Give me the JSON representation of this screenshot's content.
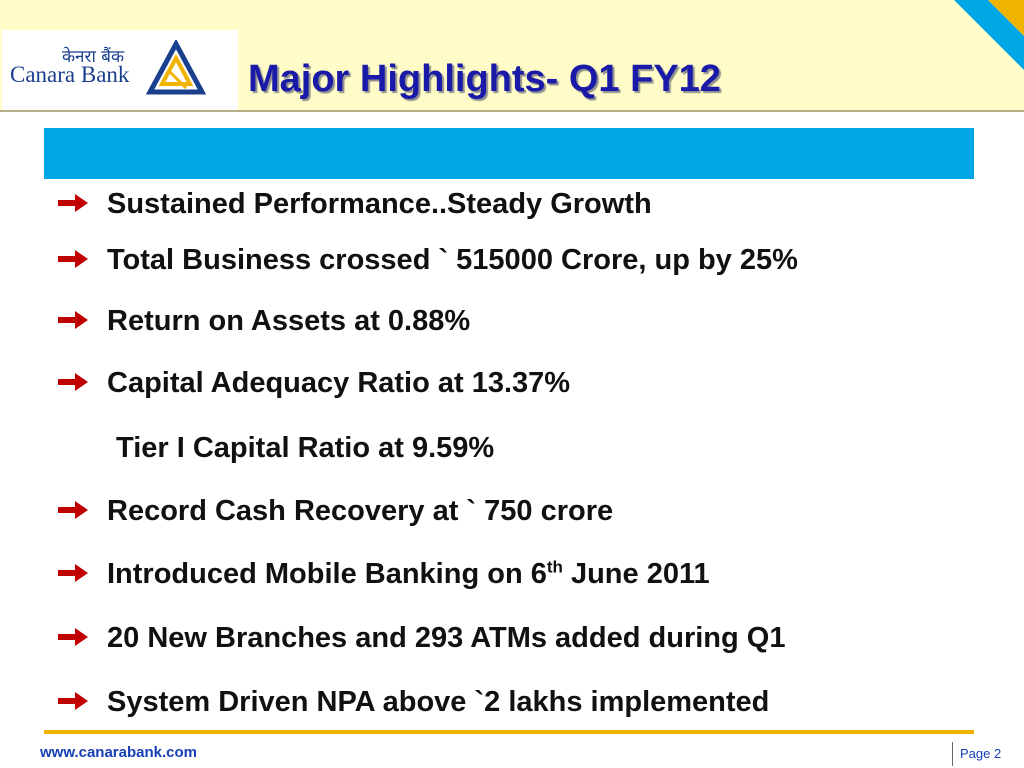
{
  "header": {
    "logo_hindi": "केनरा बैंक",
    "logo_text": "Canara Bank",
    "title": "Major Highlights- Q1 FY12"
  },
  "bullets": [
    {
      "text": "Sustained Performance..Steady Growth"
    },
    {
      "text": "Total Business crossed ` 515000 Crore, up by 25%"
    },
    {
      "text": "Return on Assets at 0.88%"
    },
    {
      "text": "Capital Adequacy Ratio at 13.37%"
    },
    {
      "text": "Tier I Capital Ratio  at 9.59%"
    },
    {
      "text": "Record Cash Recovery at ` 750 crore"
    },
    {
      "text_before": "Introduced Mobile Banking on 6",
      "sup": "th",
      "text_after": " June 2011"
    },
    {
      "text": "20 New Branches and 293 ATMs added during Q1"
    },
    {
      "text": "System Driven NPA above `2 lakhs  implemented"
    }
  ],
  "footer": {
    "url": "www.canarabank.com",
    "page": "Page  2"
  },
  "colors": {
    "title": "#1a1aa8",
    "header_bg": "#fffcc8",
    "blue_bar": "#00a6e6",
    "arrow": "#c00000",
    "bottom_bar": "#f0b400",
    "footer_text": "#1540b8"
  }
}
